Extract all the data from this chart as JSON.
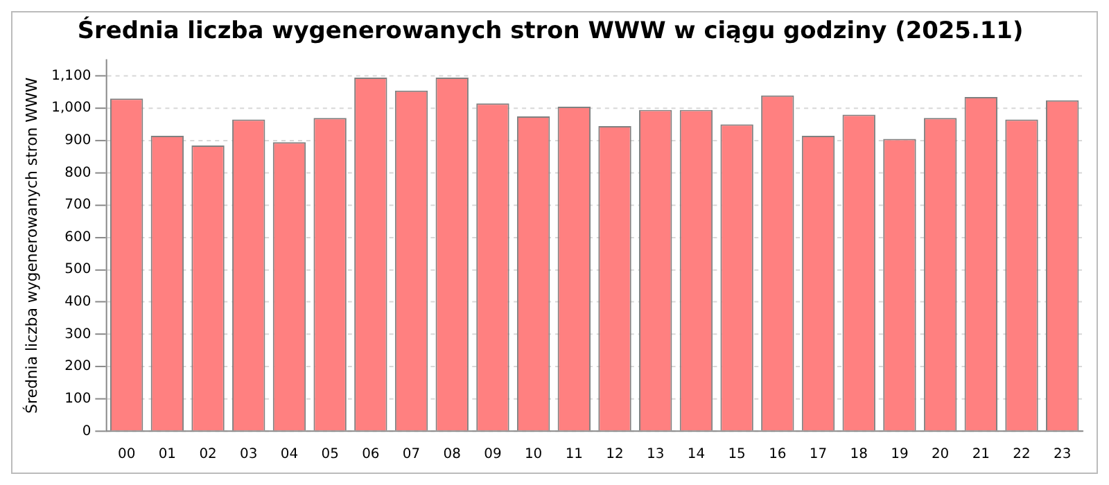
{
  "chart_data": {
    "type": "bar",
    "title": "Średnia liczba wygenerowanych stron WWW w ciągu godziny (2025.11)",
    "ylabel": "Średnia liczba wygenerowanych stron WWW",
    "categories": [
      "00",
      "01",
      "02",
      "03",
      "04",
      "05",
      "06",
      "07",
      "08",
      "09",
      "10",
      "11",
      "12",
      "13",
      "14",
      "15",
      "16",
      "17",
      "18",
      "19",
      "20",
      "21",
      "22",
      "23"
    ],
    "values": [
      1030,
      915,
      885,
      965,
      895,
      970,
      1095,
      1055,
      1095,
      1015,
      975,
      1005,
      945,
      995,
      995,
      950,
      1040,
      915,
      980,
      905,
      970,
      1035,
      965,
      1025
    ],
    "color": "#ff8080",
    "ylim": [
      0,
      1150
    ],
    "yticks": [
      0,
      100,
      200,
      300,
      400,
      500,
      600,
      700,
      800,
      900,
      {
        "value": 1000,
        "label": "1,000"
      },
      {
        "value": 1100,
        "label": "1,100"
      }
    ],
    "grid": "y"
  }
}
